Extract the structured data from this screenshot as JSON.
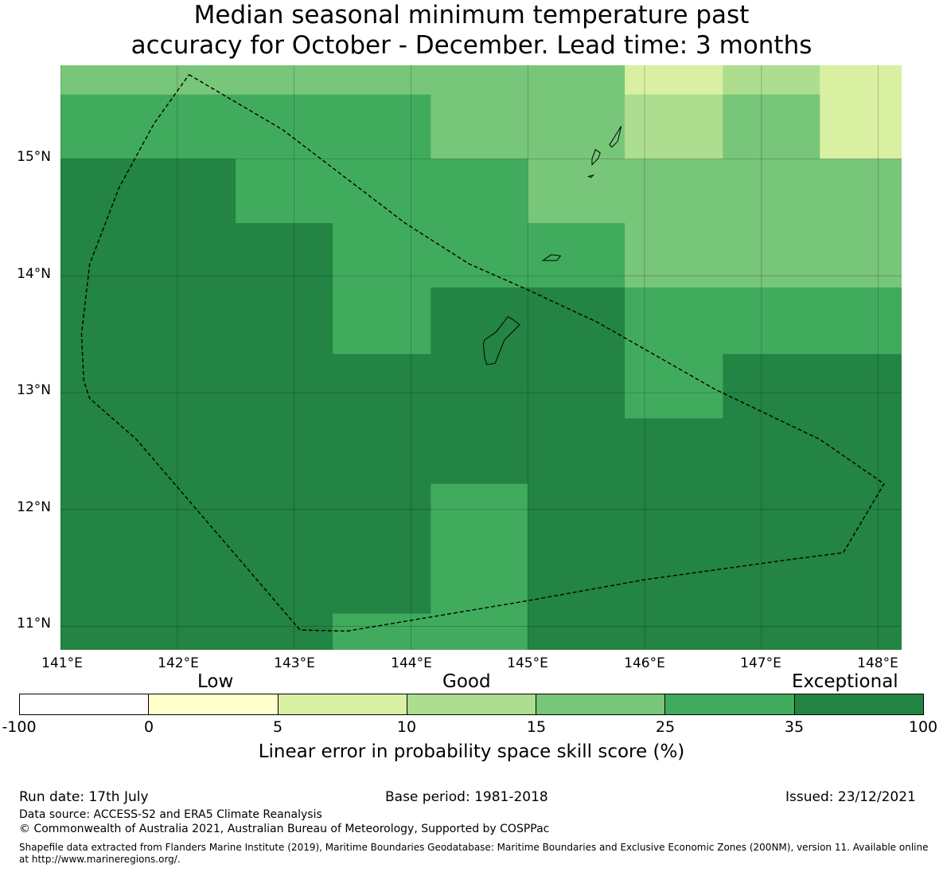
{
  "title": {
    "line1": "Median seasonal minimum temperature past",
    "line2": "accuracy for October - December. Lead time: 3 months"
  },
  "map": {
    "lon_range": [
      141,
      148.2
    ],
    "lat_range": [
      10.8,
      15.8
    ],
    "y_ticks": [
      "15°N",
      "14°N",
      "13°N",
      "12°N",
      "11°N"
    ],
    "x_ticks": [
      "141°E",
      "142°E",
      "143°E",
      "144°E",
      "145°E",
      "146°E",
      "147°E",
      "148°E"
    ],
    "colors": {
      "c0": "#ffffcc",
      "c1": "#d9f0a3",
      "c2": "#addd8e",
      "c3": "#78c679",
      "c4": "#41ab5d",
      "c5": "#238443"
    },
    "grid_cells": [
      {
        "lon": [
          141.0,
          141.75
        ],
        "lat": [
          15.55,
          15.8
        ],
        "cat": 3
      },
      {
        "lon": [
          141.75,
          144.25
        ],
        "lat": [
          15.55,
          15.8
        ],
        "cat": 3
      },
      {
        "lon": [
          144.25,
          145.83
        ],
        "lat": [
          15.55,
          15.8
        ],
        "cat": 3
      },
      {
        "lon": [
          145.83,
          146.67
        ],
        "lat": [
          15.55,
          15.8
        ],
        "cat": 1
      },
      {
        "lon": [
          146.67,
          147.5
        ],
        "lat": [
          15.55,
          15.8
        ],
        "cat": 2
      },
      {
        "lon": [
          147.5,
          148.2
        ],
        "lat": [
          15.55,
          15.8
        ],
        "cat": 1
      },
      {
        "lon": [
          141.0,
          144.17
        ],
        "lat": [
          15.0,
          15.55
        ],
        "cat": 4
      },
      {
        "lon": [
          144.17,
          145.83
        ],
        "lat": [
          15.0,
          15.55
        ],
        "cat": 3
      },
      {
        "lon": [
          145.83,
          146.67
        ],
        "lat": [
          15.0,
          15.55
        ],
        "cat": 2
      },
      {
        "lon": [
          146.67,
          147.5
        ],
        "lat": [
          15.0,
          15.55
        ],
        "cat": 3
      },
      {
        "lon": [
          147.5,
          148.2
        ],
        "lat": [
          15.0,
          15.55
        ],
        "cat": 1
      },
      {
        "lon": [
          141.0,
          142.5
        ],
        "lat": [
          14.45,
          15.0
        ],
        "cat": 5
      },
      {
        "lon": [
          142.5,
          145.0
        ],
        "lat": [
          14.45,
          15.0
        ],
        "cat": 4
      },
      {
        "lon": [
          145.0,
          148.2
        ],
        "lat": [
          14.45,
          15.0
        ],
        "cat": 3
      },
      {
        "lon": [
          141.0,
          143.33
        ],
        "lat": [
          13.9,
          14.45
        ],
        "cat": 5
      },
      {
        "lon": [
          143.33,
          145.83
        ],
        "lat": [
          13.9,
          14.45
        ],
        "cat": 4
      },
      {
        "lon": [
          145.83,
          148.2
        ],
        "lat": [
          13.9,
          14.45
        ],
        "cat": 3
      },
      {
        "lon": [
          141.0,
          143.33
        ],
        "lat": [
          13.33,
          13.9
        ],
        "cat": 5
      },
      {
        "lon": [
          143.33,
          144.17
        ],
        "lat": [
          13.33,
          13.9
        ],
        "cat": 4
      },
      {
        "lon": [
          144.17,
          145.83
        ],
        "lat": [
          13.33,
          13.9
        ],
        "cat": 5
      },
      {
        "lon": [
          145.83,
          148.2
        ],
        "lat": [
          13.33,
          13.9
        ],
        "cat": 4
      },
      {
        "lon": [
          141.0,
          145.83
        ],
        "lat": [
          12.78,
          13.33
        ],
        "cat": 5
      },
      {
        "lon": [
          145.83,
          146.67
        ],
        "lat": [
          12.78,
          13.33
        ],
        "cat": 4
      },
      {
        "lon": [
          146.67,
          148.2
        ],
        "lat": [
          12.78,
          13.33
        ],
        "cat": 5
      },
      {
        "lon": [
          141.0,
          148.2
        ],
        "lat": [
          12.22,
          12.78
        ],
        "cat": 5
      },
      {
        "lon": [
          141.0,
          144.17
        ],
        "lat": [
          11.11,
          12.22
        ],
        "cat": 5
      },
      {
        "lon": [
          144.17,
          145.0
        ],
        "lat": [
          11.11,
          12.22
        ],
        "cat": 4
      },
      {
        "lon": [
          145.0,
          148.2
        ],
        "lat": [
          11.11,
          12.22
        ],
        "cat": 5
      },
      {
        "lon": [
          141.0,
          143.33
        ],
        "lat": [
          10.8,
          11.11
        ],
        "cat": 5
      },
      {
        "lon": [
          143.33,
          145.0
        ],
        "lat": [
          10.8,
          11.11
        ],
        "cat": 4
      },
      {
        "lon": [
          145.0,
          148.2
        ],
        "lat": [
          10.8,
          11.11
        ],
        "cat": 5
      }
    ],
    "eez_boundary": [
      [
        142.1,
        15.72
      ],
      [
        142.9,
        15.25
      ],
      [
        143.95,
        14.45
      ],
      [
        144.5,
        14.1
      ],
      [
        145.0,
        13.88
      ],
      [
        145.6,
        13.6
      ],
      [
        146.6,
        13.03
      ],
      [
        147.5,
        12.6
      ],
      [
        148.05,
        12.22
      ],
      [
        147.7,
        11.63
      ],
      [
        147.3,
        11.58
      ],
      [
        146.0,
        11.4
      ],
      [
        145.0,
        11.22
      ],
      [
        143.45,
        10.96
      ],
      [
        143.05,
        10.97
      ],
      [
        141.65,
        12.6
      ],
      [
        141.25,
        12.95
      ],
      [
        141.2,
        13.1
      ],
      [
        141.18,
        13.5
      ],
      [
        141.25,
        14.1
      ],
      [
        141.5,
        14.75
      ],
      [
        141.8,
        15.3
      ],
      [
        142.1,
        15.72
      ]
    ],
    "islands": [
      [
        [
          144.63,
          13.45
        ],
        [
          144.73,
          13.52
        ],
        [
          144.83,
          13.65
        ],
        [
          144.88,
          13.62
        ],
        [
          144.93,
          13.58
        ],
        [
          144.8,
          13.45
        ],
        [
          144.72,
          13.25
        ],
        [
          144.65,
          13.24
        ],
        [
          144.63,
          13.3
        ],
        [
          144.62,
          13.42
        ]
      ],
      [
        [
          145.13,
          14.13
        ],
        [
          145.2,
          14.18
        ],
        [
          145.28,
          14.17
        ],
        [
          145.25,
          14.13
        ],
        [
          145.13,
          14.13
        ]
      ],
      [
        [
          145.55,
          14.95
        ],
        [
          145.6,
          15.0
        ],
        [
          145.62,
          15.05
        ],
        [
          145.58,
          15.08
        ],
        [
          145.55,
          15.0
        ]
      ],
      [
        [
          145.7,
          15.12
        ],
        [
          145.75,
          15.2
        ],
        [
          145.8,
          15.28
        ],
        [
          145.77,
          15.15
        ],
        [
          145.72,
          15.1
        ]
      ],
      [
        [
          145.52,
          14.85
        ],
        [
          145.56,
          14.86
        ],
        [
          145.54,
          14.84
        ]
      ]
    ]
  },
  "colorbar": {
    "categories": [
      "Low",
      "Good",
      "Exceptional"
    ],
    "ticks": [
      "-100",
      "0",
      "5",
      "10",
      "15",
      "25",
      "35",
      "100"
    ],
    "segment_colors": [
      "#ffffff",
      "#ffffcc",
      "#d9f0a3",
      "#addd8e",
      "#78c679",
      "#41ab5d",
      "#238443"
    ],
    "label": "Linear error in probability space skill score (%)"
  },
  "footer": {
    "run_date": "Run date: 17th July",
    "base_period": "Base period: 1981-2018",
    "issued": "Issued: 23/12/2021",
    "data_source": "Data source: ACCESS-S2 and ERA5 Climate Reanalysis",
    "copyright": "© Commonwealth of Australia 2021, Australian Bureau of Meteorology, Supported by COSPPac",
    "shapefile": "Shapefile data extracted from Flanders Marine Institute (2019), Maritime Boundaries Geodatabase: Maritime Boundaries and Exclusive Economic Zones (200NM), version 11. Available online at http://www.marineregions.org/."
  }
}
